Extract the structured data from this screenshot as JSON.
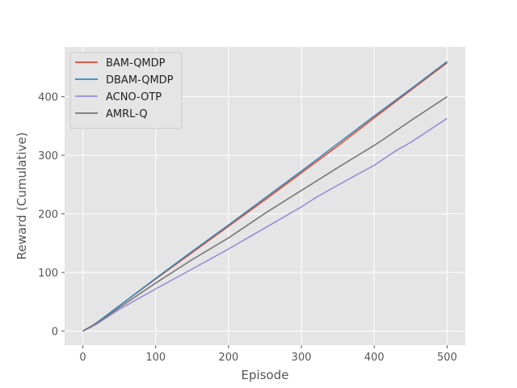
{
  "chart_data": {
    "type": "line",
    "title": "",
    "xlabel": "Episode",
    "ylabel": "Reward (Cumulative)",
    "xlim": [
      -25,
      525
    ],
    "ylim": [
      -24,
      485
    ],
    "xticks": [
      0,
      100,
      200,
      300,
      400,
      500
    ],
    "yticks": [
      0,
      100,
      200,
      300,
      400
    ],
    "grid": true,
    "legend_position": "top-left",
    "style": "ggplot",
    "series": [
      {
        "name": "BAM-QMDP",
        "color": "#E24A33",
        "x": [
          0,
          10,
          20,
          50,
          100,
          150,
          200,
          250,
          300,
          350,
          400,
          450,
          500
        ],
        "y": [
          0,
          7,
          15,
          43,
          89,
          134,
          179,
          224,
          270,
          316,
          364,
          411,
          458
        ]
      },
      {
        "name": "DBAM-QMDP",
        "color": "#348ABD",
        "x": [
          0,
          10,
          20,
          50,
          100,
          150,
          200,
          250,
          300,
          350,
          400,
          450,
          500
        ],
        "y": [
          0,
          7,
          15,
          43,
          90,
          136,
          181,
          227,
          273,
          320,
          367,
          413,
          460
        ]
      },
      {
        "name": "ACNO-OTP",
        "color": "#988ED5",
        "x": [
          0,
          10,
          20,
          50,
          100,
          150,
          200,
          250,
          300,
          320,
          350,
          400,
          430,
          450,
          500
        ],
        "y": [
          0,
          6,
          13,
          37,
          72,
          106,
          140,
          176,
          212,
          228,
          249,
          283,
          308,
          322,
          363
        ]
      },
      {
        "name": "AMRL-Q",
        "color": "#777777",
        "x": [
          0,
          10,
          20,
          50,
          100,
          150,
          200,
          250,
          300,
          350,
          400,
          410,
          450,
          500
        ],
        "y": [
          0,
          7,
          14,
          40,
          82,
          122,
          159,
          201,
          240,
          279,
          317,
          325,
          359,
          400
        ]
      }
    ]
  }
}
